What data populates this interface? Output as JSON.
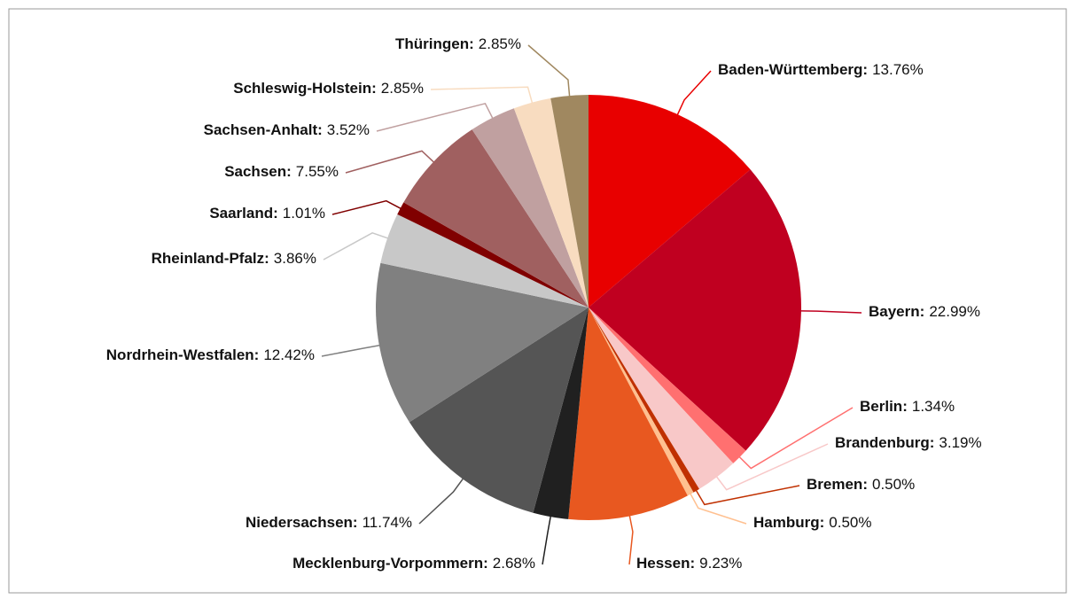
{
  "chart_data": {
    "type": "pie",
    "categories": [
      "Baden-Württemberg",
      "Bayern",
      "Berlin",
      "Brandenburg",
      "Bremen",
      "Hamburg",
      "Hessen",
      "Mecklenburg-Vorpommern",
      "Niedersachsen",
      "Nordrhein-Westfalen",
      "Rheinland-Pfalz",
      "Saarland",
      "Sachsen",
      "Sachsen-Anhalt",
      "Schleswig-Holstein",
      "Thüringen"
    ],
    "values": [
      13.76,
      22.99,
      1.34,
      3.19,
      0.5,
      0.5,
      9.23,
      2.68,
      11.74,
      12.42,
      3.86,
      1.01,
      7.55,
      3.52,
      2.85,
      2.85
    ],
    "value_labels": [
      "13.76%",
      "22.99%",
      "1.34%",
      "3.19%",
      "0.50%",
      "0.50%",
      "9.23%",
      "2.68%",
      "11.74%",
      "12.42%",
      "3.86%",
      "1.01%",
      "7.55%",
      "3.52%",
      "2.85%",
      "2.85%"
    ],
    "separator": ":",
    "colors": [
      "#e80000",
      "#c00020",
      "#ff7070",
      "#f8c8c8",
      "#c03000",
      "#ffc090",
      "#e85820",
      "#202020",
      "#555555",
      "#808080",
      "#c8c8c8",
      "#800000",
      "#a06060",
      "#c0a0a0",
      "#f8dcc0",
      "#a08860"
    ]
  }
}
